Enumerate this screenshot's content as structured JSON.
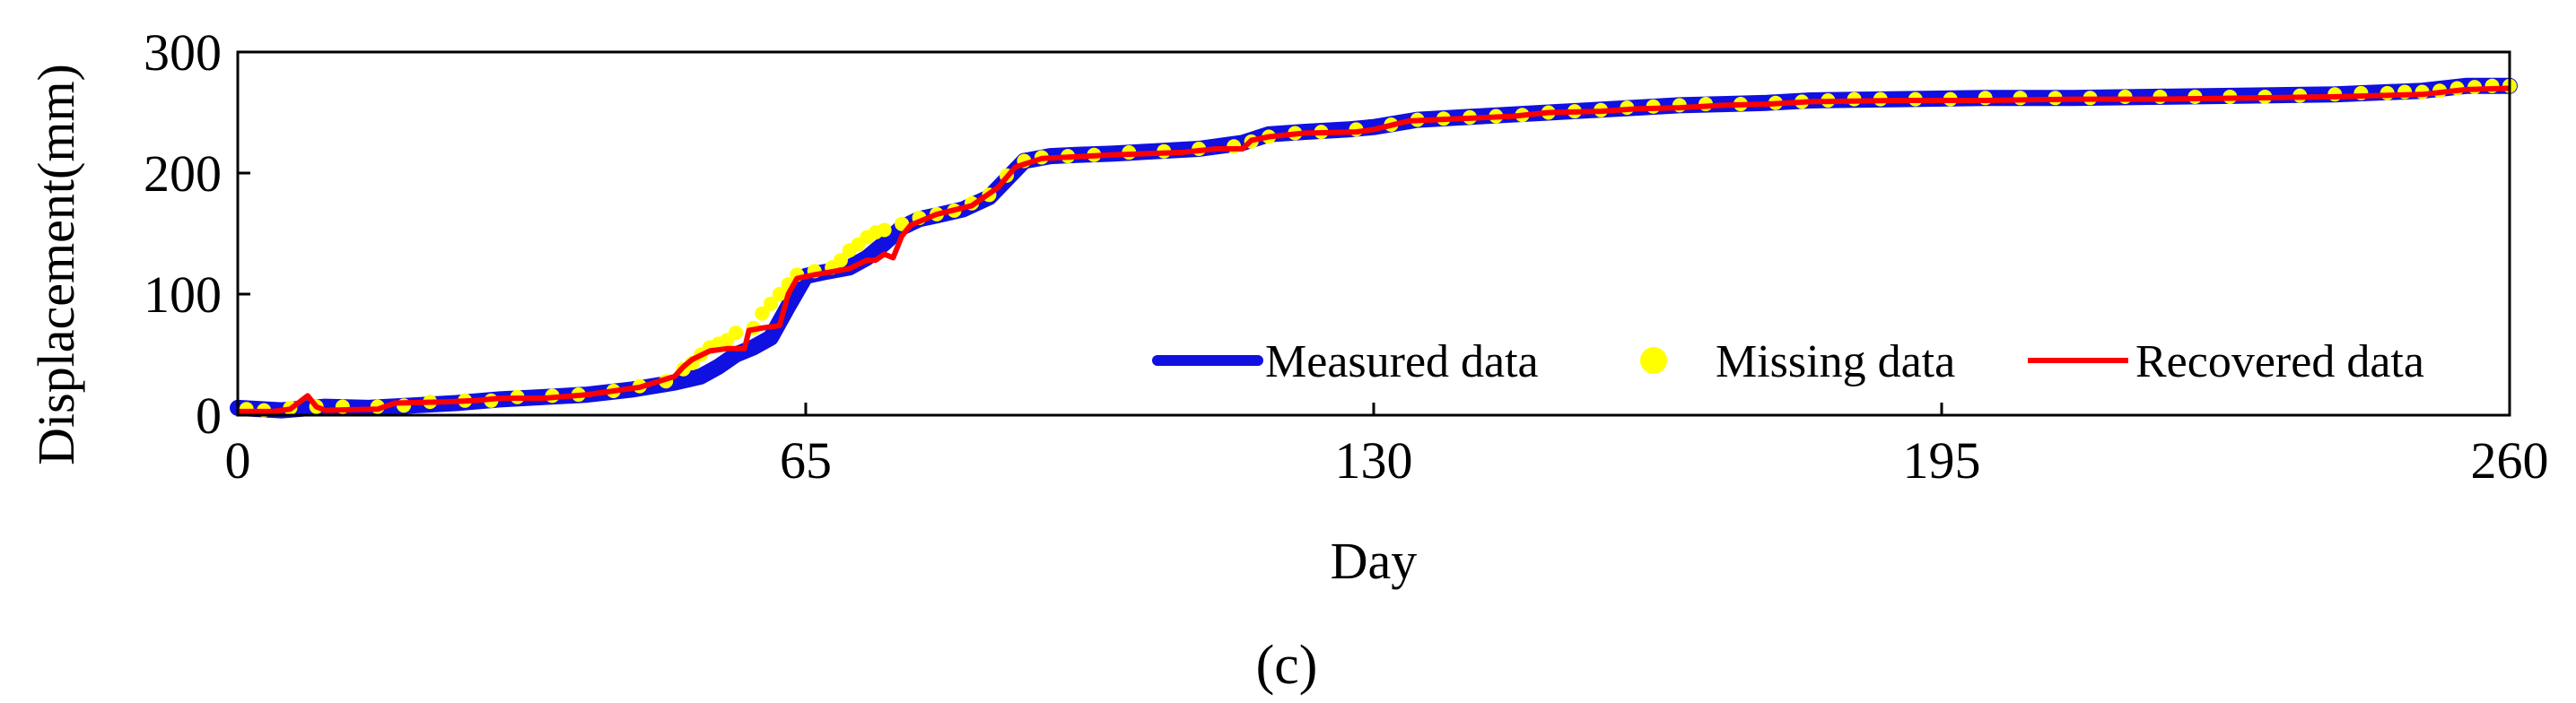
{
  "chart_data": {
    "type": "line",
    "title": "",
    "xlabel": "Day",
    "ylabel": "Displacement(mm)",
    "panel_label": "(c)",
    "xlim": [
      0,
      260
    ],
    "ylim": [
      0,
      300
    ],
    "x_ticks": [
      0,
      65,
      130,
      195,
      260
    ],
    "y_ticks": [
      0,
      100,
      200,
      300
    ],
    "legend_position": "bottom-right",
    "grid": false,
    "series": [
      {
        "name": "Measured data",
        "style": "line",
        "color": "#1010e0",
        "points": [
          [
            0,
            6
          ],
          [
            5,
            4
          ],
          [
            10,
            7
          ],
          [
            15,
            6
          ],
          [
            20,
            8
          ],
          [
            25,
            10
          ],
          [
            30,
            13
          ],
          [
            35,
            15
          ],
          [
            40,
            17
          ],
          [
            45,
            21
          ],
          [
            50,
            27
          ],
          [
            53,
            32
          ],
          [
            55,
            40
          ],
          [
            57,
            50
          ],
          [
            59,
            56
          ],
          [
            61,
            64
          ],
          [
            63,
            90
          ],
          [
            65,
            115
          ],
          [
            67,
            118
          ],
          [
            70,
            122
          ],
          [
            72,
            130
          ],
          [
            74,
            142
          ],
          [
            76,
            155
          ],
          [
            78,
            162
          ],
          [
            80,
            165
          ],
          [
            83,
            170
          ],
          [
            86,
            180
          ],
          [
            88,
            195
          ],
          [
            90,
            210
          ],
          [
            93,
            214
          ],
          [
            96,
            215
          ],
          [
            100,
            216
          ],
          [
            105,
            218
          ],
          [
            110,
            220
          ],
          [
            115,
            225
          ],
          [
            118,
            232
          ],
          [
            122,
            234
          ],
          [
            127,
            236
          ],
          [
            130,
            238
          ],
          [
            135,
            244
          ],
          [
            140,
            246
          ],
          [
            145,
            248
          ],
          [
            150,
            250
          ],
          [
            155,
            252
          ],
          [
            160,
            254
          ],
          [
            165,
            256
          ],
          [
            170,
            257
          ],
          [
            175,
            258
          ],
          [
            180,
            260
          ],
          [
            190,
            261
          ],
          [
            200,
            262
          ],
          [
            210,
            262
          ],
          [
            220,
            263
          ],
          [
            230,
            264
          ],
          [
            240,
            265
          ],
          [
            250,
            268
          ],
          [
            255,
            272
          ],
          [
            260,
            272
          ]
        ]
      },
      {
        "name": "Missing data",
        "style": "markers",
        "color": "#ffff00",
        "points": [
          [
            1,
            5
          ],
          [
            3,
            4
          ],
          [
            6,
            6
          ],
          [
            9,
            7
          ],
          [
            12,
            7
          ],
          [
            16,
            7
          ],
          [
            19,
            8
          ],
          [
            22,
            11
          ],
          [
            26,
            12
          ],
          [
            29,
            12
          ],
          [
            32,
            15
          ],
          [
            36,
            16
          ],
          [
            39,
            17
          ],
          [
            43,
            20
          ],
          [
            46,
            24
          ],
          [
            49,
            28
          ],
          [
            51,
            38
          ],
          [
            52,
            43
          ],
          [
            53,
            50
          ],
          [
            54,
            56
          ],
          [
            55,
            59
          ],
          [
            56,
            62
          ],
          [
            57,
            68
          ],
          [
            59,
            72
          ],
          [
            60,
            84
          ],
          [
            61,
            92
          ],
          [
            62,
            100
          ],
          [
            63,
            108
          ],
          [
            64,
            116
          ],
          [
            66,
            119
          ],
          [
            68,
            122
          ],
          [
            69,
            128
          ],
          [
            70,
            136
          ],
          [
            71,
            141
          ],
          [
            72,
            147
          ],
          [
            73,
            151
          ],
          [
            74,
            153
          ],
          [
            76,
            158
          ],
          [
            78,
            163
          ],
          [
            80,
            166
          ],
          [
            82,
            169
          ],
          [
            84,
            175
          ],
          [
            86,
            182
          ],
          [
            88,
            198
          ],
          [
            90,
            210
          ],
          [
            92,
            213
          ],
          [
            95,
            214
          ],
          [
            98,
            215
          ],
          [
            102,
            217
          ],
          [
            106,
            218
          ],
          [
            110,
            220
          ],
          [
            114,
            222
          ],
          [
            116,
            226
          ],
          [
            118,
            230
          ],
          [
            121,
            233
          ],
          [
            124,
            234
          ],
          [
            128,
            236
          ],
          [
            132,
            240
          ],
          [
            135,
            244
          ],
          [
            138,
            245
          ],
          [
            141,
            246
          ],
          [
            144,
            247
          ],
          [
            147,
            248
          ],
          [
            150,
            250
          ],
          [
            153,
            251
          ],
          [
            156,
            252
          ],
          [
            159,
            254
          ],
          [
            162,
            255
          ],
          [
            165,
            256
          ],
          [
            168,
            257
          ],
          [
            172,
            257
          ],
          [
            176,
            258
          ],
          [
            179,
            259
          ],
          [
            182,
            260
          ],
          [
            185,
            261
          ],
          [
            188,
            261
          ],
          [
            192,
            261
          ],
          [
            196,
            261
          ],
          [
            200,
            262
          ],
          [
            204,
            262
          ],
          [
            208,
            262
          ],
          [
            212,
            262
          ],
          [
            216,
            263
          ],
          [
            220,
            263
          ],
          [
            224,
            263
          ],
          [
            228,
            263
          ],
          [
            232,
            263
          ],
          [
            236,
            264
          ],
          [
            240,
            265
          ],
          [
            243,
            266
          ],
          [
            246,
            266
          ],
          [
            248,
            267
          ],
          [
            250,
            267
          ],
          [
            252,
            268
          ],
          [
            254,
            270
          ],
          [
            256,
            271
          ],
          [
            258,
            272
          ],
          [
            260,
            272
          ]
        ]
      },
      {
        "name": "Recovered data",
        "style": "line",
        "color": "#ff0000",
        "points": [
          [
            0,
            3
          ],
          [
            4,
            3
          ],
          [
            6,
            5
          ],
          [
            8,
            16
          ],
          [
            9,
            7
          ],
          [
            10,
            4
          ],
          [
            16,
            5
          ],
          [
            18,
            10
          ],
          [
            24,
            11
          ],
          [
            27,
            12
          ],
          [
            30,
            14
          ],
          [
            35,
            14
          ],
          [
            40,
            17
          ],
          [
            46,
            23
          ],
          [
            50,
            32
          ],
          [
            51,
            40
          ],
          [
            52,
            46
          ],
          [
            54,
            53
          ],
          [
            56,
            55
          ],
          [
            58,
            55
          ],
          [
            58.5,
            70
          ],
          [
            60,
            72
          ],
          [
            62,
            74
          ],
          [
            63,
            100
          ],
          [
            64,
            113
          ],
          [
            66,
            116
          ],
          [
            70,
            121
          ],
          [
            72,
            128
          ],
          [
            73,
            128
          ],
          [
            74,
            133
          ],
          [
            75,
            130
          ],
          [
            76,
            148
          ],
          [
            77,
            157
          ],
          [
            80,
            166
          ],
          [
            84,
            173
          ],
          [
            87,
            188
          ],
          [
            89,
            205
          ],
          [
            92,
            212
          ],
          [
            100,
            215
          ],
          [
            108,
            217
          ],
          [
            112,
            220
          ],
          [
            115,
            220
          ],
          [
            116,
            227
          ],
          [
            118,
            230
          ],
          [
            122,
            233
          ],
          [
            128,
            234
          ],
          [
            130,
            236
          ],
          [
            134,
            243
          ],
          [
            140,
            245
          ],
          [
            146,
            247
          ],
          [
            150,
            250
          ],
          [
            156,
            251
          ],
          [
            160,
            253
          ],
          [
            165,
            254
          ],
          [
            170,
            256
          ],
          [
            175,
            257
          ],
          [
            180,
            259
          ],
          [
            190,
            260
          ],
          [
            200,
            260
          ],
          [
            210,
            261
          ],
          [
            220,
            261
          ],
          [
            230,
            262
          ],
          [
            240,
            263
          ],
          [
            250,
            265
          ],
          [
            255,
            269
          ],
          [
            260,
            270
          ]
        ]
      }
    ]
  }
}
